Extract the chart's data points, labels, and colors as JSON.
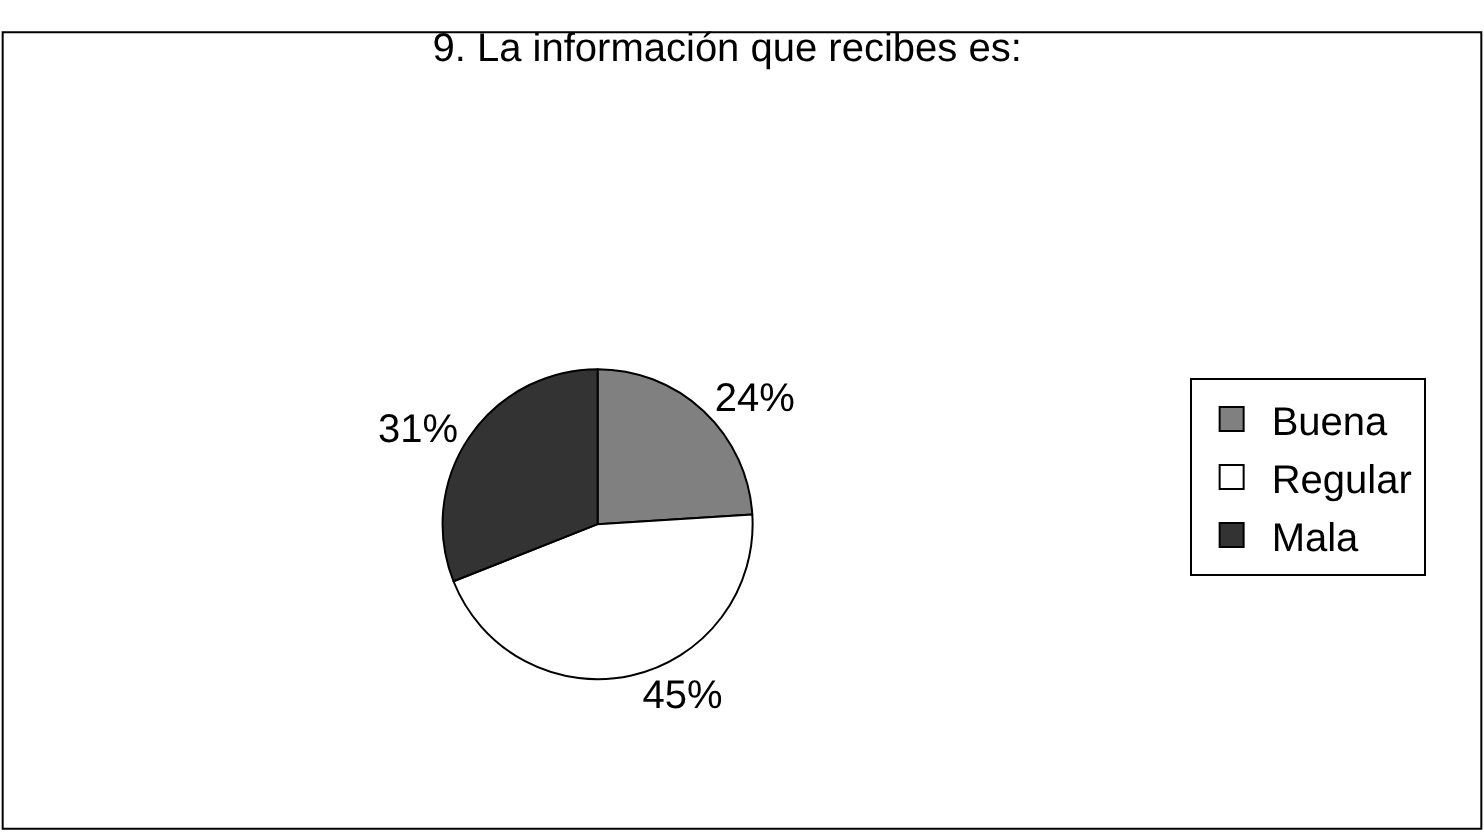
{
  "chart_data": {
    "type": "pie",
    "title": "9. La información que recibes es:",
    "categories": [
      "Buena",
      "Regular",
      "Mala"
    ],
    "values": [
      24,
      45,
      31
    ],
    "colors": [
      "#808080",
      "#ffffff",
      "#333333"
    ],
    "value_labels": [
      "24%",
      "45%",
      "31%"
    ],
    "legend": "right"
  }
}
